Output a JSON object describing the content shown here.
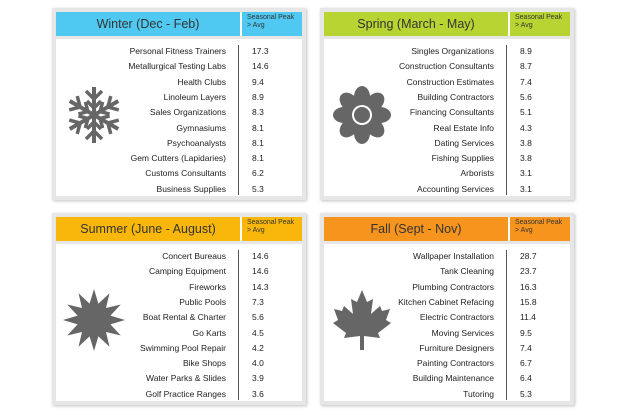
{
  "panels": [
    {
      "title": "Winter (Dec - Feb)",
      "column_header": "Seasonal Peak > Avg",
      "color": "#4fc9f1",
      "rows": [
        [
          "Personal Fitness Trainers",
          "17.3"
        ],
        [
          "Metallurgical Testing Labs",
          "14.6"
        ],
        [
          "Health Clubs",
          "9.4"
        ],
        [
          "Linoleum Layers",
          "8.9"
        ],
        [
          "Sales Organizations",
          "8.3"
        ],
        [
          "Gymnasiums",
          "8.1"
        ],
        [
          "Psychoanalysts",
          "8.1"
        ],
        [
          "Gem Cutters (Lapidaries)",
          "8.1"
        ],
        [
          "Customs Consultants",
          "6.2"
        ],
        [
          "Business Supplies",
          "5.3"
        ]
      ]
    },
    {
      "title": "Spring (March - May)",
      "column_header": "Seasonal Peak > Avg",
      "color": "#b8d432",
      "rows": [
        [
          "Singles Organizations",
          "8.9"
        ],
        [
          "Construction Consultants",
          "8.7"
        ],
        [
          "Construction Estimates",
          "7.4"
        ],
        [
          "Building Contractors",
          "5.6"
        ],
        [
          "Financing Consultants",
          "5.1"
        ],
        [
          "Real Estate Info",
          "4.3"
        ],
        [
          "Dating Services",
          "3.8"
        ],
        [
          "Fishing Supplies",
          "3.8"
        ],
        [
          "Arborists",
          "3.1"
        ],
        [
          "Accounting Services",
          "3.1"
        ]
      ]
    },
    {
      "title": "Summer (June - August)",
      "column_header": "Seasonal Peak > Avg",
      "color": "#f8b70a",
      "rows": [
        [
          "Concert Bureaus",
          "14.6"
        ],
        [
          "Camping Equipment",
          "14.6"
        ],
        [
          "Fireworks",
          "14.3"
        ],
        [
          "Public Pools",
          "7.3"
        ],
        [
          "Boat Rental & Charter",
          "5.6"
        ],
        [
          "Go Karts",
          "4.5"
        ],
        [
          "Swimming Pool Repair",
          "4.2"
        ],
        [
          "Bike Shops",
          "4.0"
        ],
        [
          "Water Parks & Slides",
          "3.9"
        ],
        [
          "Golf Practice Ranges",
          "3.6"
        ]
      ]
    },
    {
      "title": "Fall (Sept - Nov)",
      "column_header": "Seasonal Peak > Avg",
      "color": "#f7941e",
      "rows": [
        [
          "Wallpaper Installation",
          "28.7"
        ],
        [
          "Tank Cleaning",
          "23.7"
        ],
        [
          "Plumbing Contractors",
          "16.3"
        ],
        [
          "Kitchen Cabinet Refacing",
          "15.8"
        ],
        [
          "Electric Contractors",
          "11.4"
        ],
        [
          "Moving Services",
          "9.5"
        ],
        [
          "Furniture Designers",
          "7.4"
        ],
        [
          "Painting Contractors",
          "6.7"
        ],
        [
          "Building Maintenance",
          "6.4"
        ],
        [
          "Tutoring",
          "5.3"
        ]
      ]
    }
  ]
}
